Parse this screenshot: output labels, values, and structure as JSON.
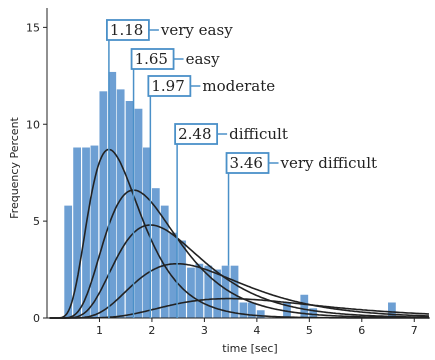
{
  "chart_data": {
    "type": "bar",
    "xlabel": "time [sec]",
    "ylabel": "Frequency Percent",
    "xlim": [
      0,
      7.3
    ],
    "ylim": [
      0,
      16
    ],
    "x_ticks": [
      "1",
      "2",
      "3",
      "4",
      "5",
      "6",
      "7"
    ],
    "y_ticks": [
      "0",
      "5",
      "10",
      "15"
    ],
    "bin_width": 0.167,
    "bins_start": [
      0.33,
      0.5,
      0.67,
      0.83,
      1.0,
      1.17,
      1.33,
      1.5,
      1.67,
      1.83,
      2.0,
      2.17,
      2.33,
      2.5,
      2.67,
      2.83,
      3.0,
      3.17,
      3.33,
      3.5,
      3.67,
      3.83,
      4.0,
      4.5,
      4.83,
      5.0,
      6.5
    ],
    "values": [
      5.8,
      8.8,
      8.8,
      8.9,
      11.7,
      12.7,
      11.8,
      11.2,
      10.8,
      8.8,
      6.7,
      5.8,
      4.4,
      4.0,
      2.6,
      2.8,
      2.7,
      2.5,
      2.7,
      2.7,
      0.8,
      0.8,
      0.4,
      0.8,
      1.2,
      0.5,
      0.8
    ],
    "curves": [
      {
        "mean": 1.18,
        "peak": 8.7
      },
      {
        "mean": 1.65,
        "peak": 6.6
      },
      {
        "mean": 1.97,
        "peak": 4.8
      },
      {
        "mean": 2.48,
        "peak": 2.8
      },
      {
        "mean": 3.46,
        "peak": 1.0
      }
    ],
    "annotations": [
      {
        "value": "1.18",
        "label": "very easy"
      },
      {
        "value": "1.65",
        "label": "easy"
      },
      {
        "value": "1.97",
        "label": "moderate"
      },
      {
        "value": "2.48",
        "label": "difficult"
      },
      {
        "value": "3.46",
        "label": "very difficult"
      }
    ],
    "bar_color": "#6d9fd3",
    "annotation_color": "#4a90c8",
    "curve_color": "#222222"
  }
}
